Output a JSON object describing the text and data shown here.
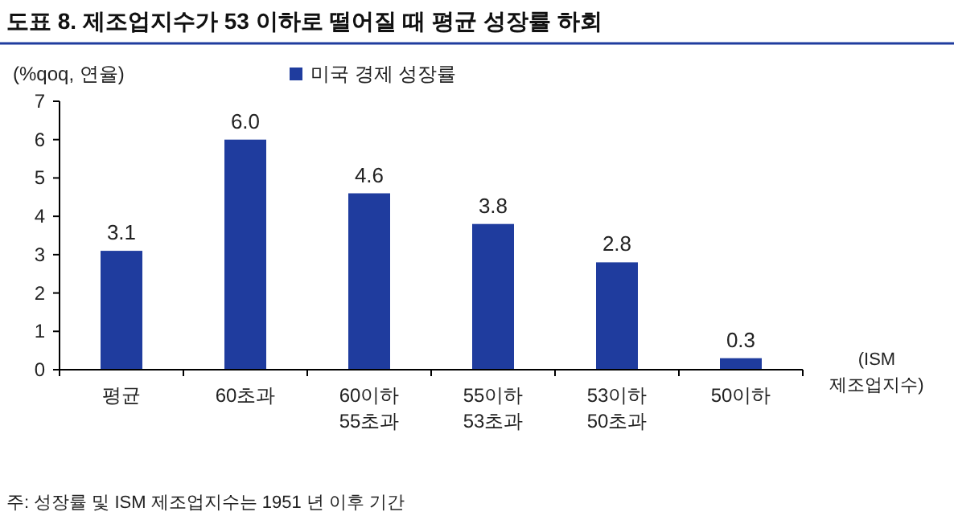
{
  "chart_data": {
    "type": "bar",
    "title": "도표 8.   제조업지수가 53 이하로 떨어질 때 평균 성장률 하회",
    "ylabel": "(%qoq, 연율)",
    "xlabel": "(ISM\n제조업지수)",
    "categories": [
      "평균",
      "60초과",
      "60이하\n55초과",
      "55이하\n53초과",
      "53이하\n50초과",
      "50이하"
    ],
    "series": [
      {
        "name": "미국 경제 성장률",
        "color": "#1f3c9e",
        "values": [
          3.1,
          6.0,
          4.6,
          3.8,
          2.8,
          0.3
        ],
        "value_labels": [
          "3.1",
          "6.0",
          "4.6",
          "3.8",
          "2.8",
          "0.3"
        ]
      }
    ],
    "ylim": [
      0,
      7
    ],
    "yticks": [
      0,
      1,
      2,
      3,
      4,
      5,
      6,
      7
    ],
    "legend": "top left",
    "grid": false,
    "annotations": [
      "주: 성장률 및 ISM 제조업지수는 1951 년 이후 기간"
    ]
  }
}
